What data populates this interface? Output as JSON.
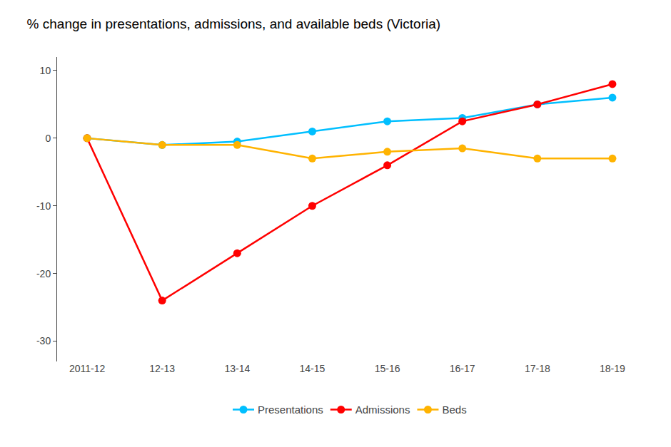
{
  "chart_data": {
    "type": "line",
    "title": "% change in presentations, admissions, and available beds (Victoria)",
    "categories": [
      "2011-12",
      "12-13",
      "13-14",
      "14-15",
      "15-16",
      "16-17",
      "17-18",
      "18-19"
    ],
    "series": [
      {
        "name": "Presentations",
        "color": "#00BFFF",
        "values": [
          0,
          -1,
          -0.5,
          1,
          2.5,
          3,
          5,
          6
        ]
      },
      {
        "name": "Admissions",
        "color": "#FF0000",
        "values": [
          0,
          -24,
          -17,
          -10,
          -4,
          2.5,
          5,
          8
        ]
      },
      {
        "name": "Beds",
        "color": "#FFB300",
        "values": [
          0,
          -1,
          -1,
          -3,
          -2,
          -1.5,
          -3,
          -3
        ]
      }
    ],
    "ylim": [
      -33,
      12
    ],
    "yticks": [
      -30,
      -20,
      -10,
      0,
      10
    ],
    "grid": false,
    "legend": "bottom",
    "marker": "circle"
  }
}
